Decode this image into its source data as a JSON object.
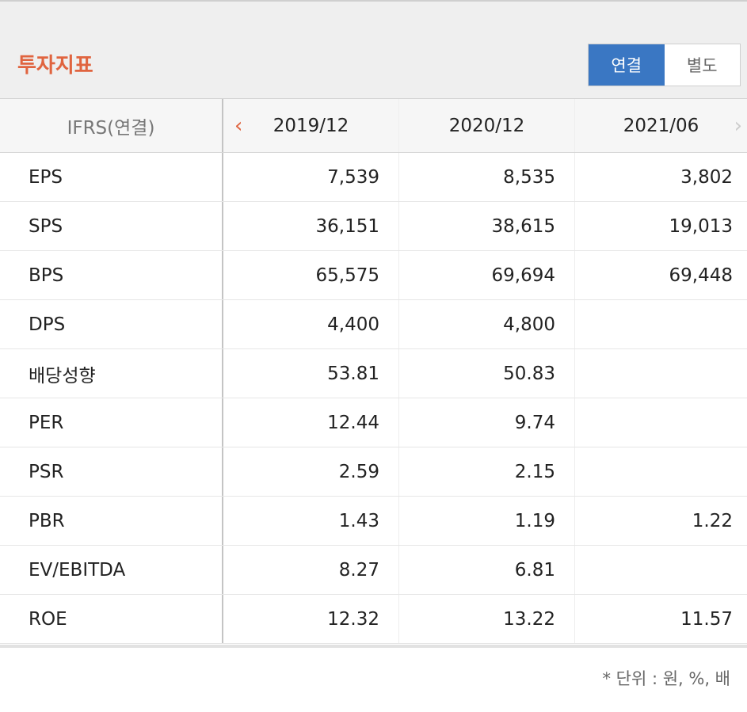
{
  "header": {
    "title": "투자지표",
    "toggle": {
      "consolidated": "연결",
      "separate": "별도"
    }
  },
  "table": {
    "columns": [
      "IFRS(연결)",
      "2019/12",
      "2020/12",
      "2021/06"
    ],
    "prev_icon": "chevron-left-icon",
    "next_icon": "chevron-right-icon",
    "rows": [
      {
        "label": "EPS",
        "values": [
          "7,539",
          "8,535",
          "3,802"
        ]
      },
      {
        "label": "SPS",
        "values": [
          "36,151",
          "38,615",
          "19,013"
        ]
      },
      {
        "label": "BPS",
        "values": [
          "65,575",
          "69,694",
          "69,448"
        ]
      },
      {
        "label": "DPS",
        "values": [
          "4,400",
          "4,800",
          ""
        ]
      },
      {
        "label": "배당성향",
        "values": [
          "53.81",
          "50.83",
          ""
        ]
      },
      {
        "label": "PER",
        "values": [
          "12.44",
          "9.74",
          ""
        ]
      },
      {
        "label": "PSR",
        "values": [
          "2.59",
          "2.15",
          ""
        ]
      },
      {
        "label": "PBR",
        "values": [
          "1.43",
          "1.19",
          "1.22"
        ]
      },
      {
        "label": "EV/EBITDA",
        "values": [
          "8.27",
          "6.81",
          ""
        ]
      },
      {
        "label": "ROE",
        "values": [
          "12.32",
          "13.22",
          "11.57"
        ]
      }
    ]
  },
  "footer": {
    "unit_note": "* 단위 : 원, %, 배"
  },
  "colors": {
    "accent": "#e0643f",
    "toggle_active": "#3a77c3"
  }
}
